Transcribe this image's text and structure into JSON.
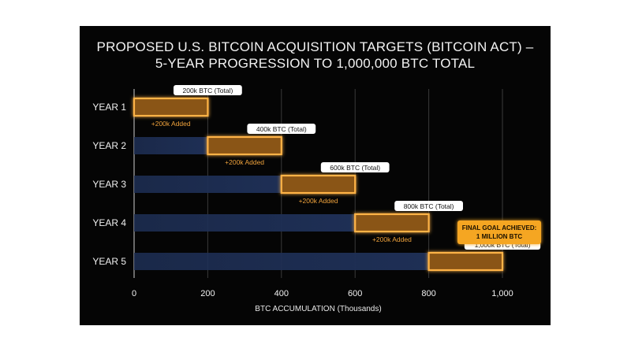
{
  "title_lines": [
    "PROPOSED U.S. BITCOIN ACQUISITION TARGETS (BITCOIN ACT) –",
    "5-YEAR PROGRESSION TO 1,000,000 BTC TOTAL"
  ],
  "chart_data": {
    "type": "bar",
    "orientation": "horizontal",
    "categories": [
      "YEAR 1",
      "YEAR 2",
      "YEAR 3",
      "YEAR 4",
      "YEAR 5"
    ],
    "series": [
      {
        "values": [
          0,
          200,
          400,
          600,
          800
        ]
      },
      {
        "values": [
          200,
          200,
          200,
          200,
          200
        ]
      }
    ],
    "total_labels": [
      "200k BTC (Total)",
      "400k BTC (Total)",
      "600k BTC (Total)",
      "800k BTC (Total)",
      "1,000k BTC (Total)"
    ],
    "added_labels": [
      "+200k Added",
      "+200k Added",
      "+200k Added",
      "+200k Added",
      ""
    ],
    "xlabel": "BTC ACCUMULATION (Thousands)",
    "ylabel": "",
    "xlim": [
      0,
      1000
    ],
    "xticks": [
      0,
      200,
      400,
      600,
      800,
      1000
    ],
    "xtick_labels": [
      "0",
      "200",
      "400",
      "600",
      "800",
      "1,000"
    ],
    "grid": true,
    "annotation": [
      "FINAL GOAL ACHIEVED:",
      "1 MILLION BTC"
    ],
    "colors": {
      "background": "#050505",
      "prior_bar": "#1e2f55",
      "added_fill": "#8a5514",
      "added_edge": "#ffb347",
      "added_text": "#f0a33c",
      "label_box": "#ffffff",
      "goal_box": "#f5a623",
      "grid": "#3a3a3a"
    }
  }
}
